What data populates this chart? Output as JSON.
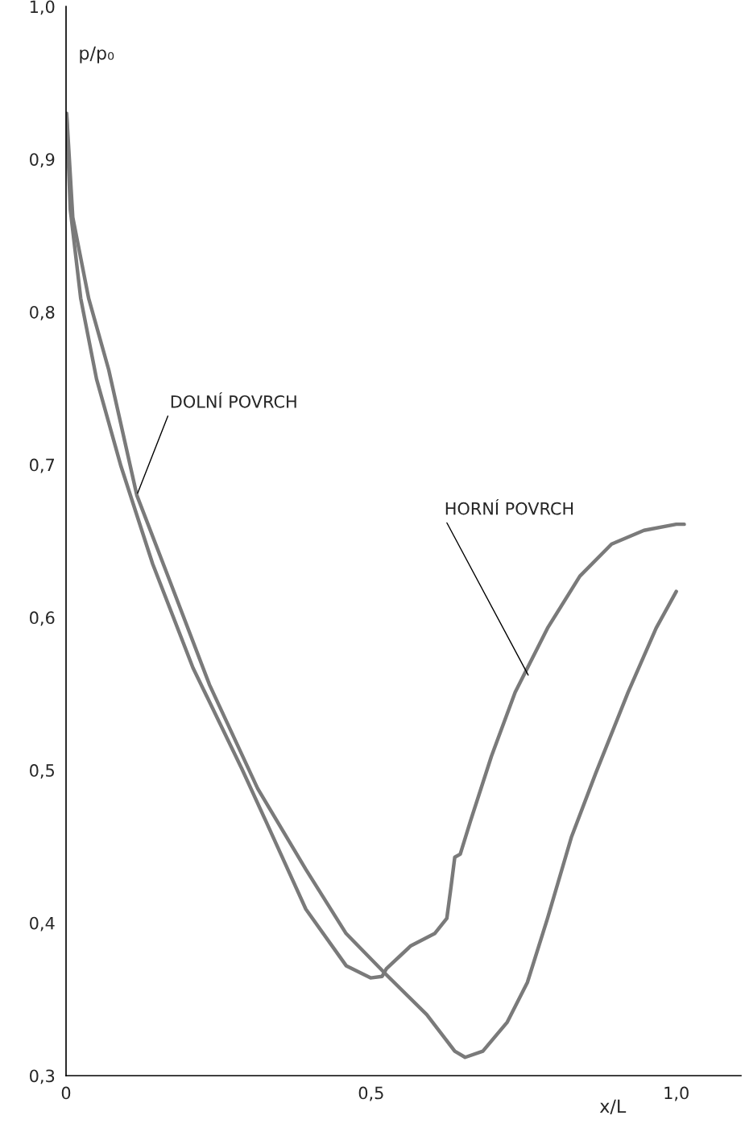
{
  "chart_data": {
    "type": "line",
    "xlabel": "x/L",
    "ylabel": "p/p₀",
    "xlim": [
      0,
      1.106
    ],
    "ylim": [
      0.3,
      1.0
    ],
    "xticks": [
      {
        "value": 0,
        "label": "0"
      },
      {
        "value": 0.5,
        "label": "0,5"
      },
      {
        "value": 1.0,
        "label": "1,0"
      }
    ],
    "yticks": [
      {
        "value": 0.3,
        "label": "0,3"
      },
      {
        "value": 0.4,
        "label": "0,4"
      },
      {
        "value": 0.5,
        "label": "0,5"
      },
      {
        "value": 0.6,
        "label": "0,6"
      },
      {
        "value": 0.7,
        "label": "0,7"
      },
      {
        "value": 0.8,
        "label": "0,8"
      },
      {
        "value": 0.9,
        "label": "0,9"
      },
      {
        "value": 1.0,
        "label": "1,0"
      }
    ],
    "grid": false,
    "legend": false,
    "series": [
      {
        "color": "#7a7a7a",
        "x": [
          0.001,
          0.007,
          0.024,
          0.05,
          0.09,
          0.142,
          0.208,
          0.288,
          0.327,
          0.393,
          0.459,
          0.499,
          0.518,
          0.525,
          0.565,
          0.604,
          0.624,
          0.631,
          0.637,
          0.646,
          0.663,
          0.697,
          0.736,
          0.789,
          0.842,
          0.894,
          0.947,
          1.0,
          1.013
        ],
        "values": [
          0.928,
          0.867,
          0.809,
          0.756,
          0.699,
          0.635,
          0.567,
          0.501,
          0.467,
          0.409,
          0.372,
          0.364,
          0.365,
          0.37,
          0.385,
          0.393,
          0.403,
          0.424,
          0.443,
          0.445,
          0.467,
          0.509,
          0.551,
          0.593,
          0.627,
          0.648,
          0.657,
          0.661,
          0.661
        ]
      },
      {
        "color": "#7a7a7a",
        "x": [
          0.001,
          0.011,
          0.037,
          0.07,
          0.116,
          0.169,
          0.235,
          0.314,
          0.393,
          0.459,
          0.525,
          0.591,
          0.637,
          0.654,
          0.683,
          0.723,
          0.756,
          0.789,
          0.828,
          0.868,
          0.921,
          0.967,
          1.0
        ],
        "values": [
          0.93,
          0.862,
          0.809,
          0.762,
          0.68,
          0.625,
          0.556,
          0.488,
          0.435,
          0.393,
          0.366,
          0.34,
          0.316,
          0.312,
          0.316,
          0.335,
          0.361,
          0.403,
          0.456,
          0.498,
          0.551,
          0.593,
          0.617
        ]
      }
    ],
    "annotations": [
      {
        "text": "DOLNÍ POVRCH",
        "x": 0.116,
        "y": 0.68
      },
      {
        "text": "HORNÍ POVRCH",
        "x": 0.759,
        "y": 0.561
      }
    ]
  }
}
